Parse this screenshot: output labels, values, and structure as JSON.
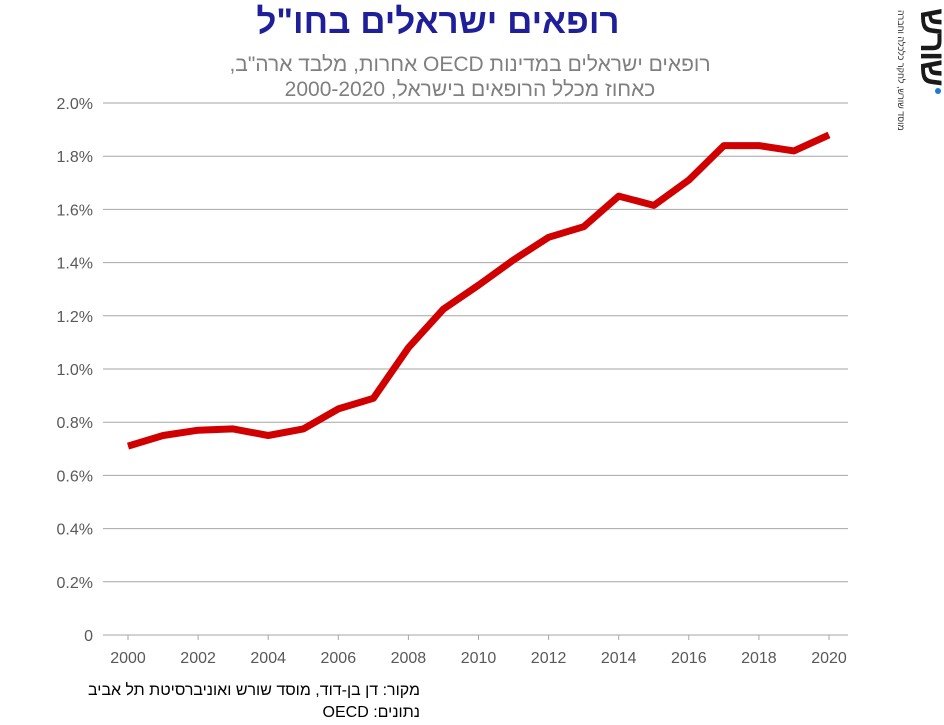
{
  "header": {
    "title": "רופאים ישראלים בחו\"ל",
    "subtitle_line1": "רופאים ישראלים במדינות OECD אחרות, מלבד ארה\"ב,",
    "subtitle_line2": "כאחוז מכלל הרופאים בישראל, 2000-2020"
  },
  "logo": {
    "word": "שורש",
    "tagline": "מוסד שורש, לחקר כלכלה וחברה",
    "dot_color": "#1f7ad1"
  },
  "footer": {
    "source": "מקור:  דן בן-דוד, מוסד שורש ואוניברסיטת תל אביב",
    "data": "נתונים: OECD"
  },
  "colors": {
    "line": "#d10000",
    "grid": "#a6a6a6",
    "title": "#1f1f9a",
    "subtitle": "#7f7f7f"
  },
  "chart_data": {
    "type": "line",
    "title": "רופאים ישראלים בחו\"ל",
    "xlabel": "",
    "ylabel": "",
    "x": [
      2000,
      2001,
      2002,
      2003,
      2004,
      2005,
      2006,
      2007,
      2008,
      2009,
      2010,
      2011,
      2012,
      2013,
      2014,
      2015,
      2016,
      2017,
      2018,
      2019,
      2020
    ],
    "series": [
      {
        "name": "רופאים ישראלים במדינות OECD אחרות",
        "values": [
          0.71,
          0.75,
          0.77,
          0.775,
          0.75,
          0.775,
          0.85,
          0.89,
          1.08,
          1.225,
          1.315,
          1.41,
          1.495,
          1.535,
          1.65,
          1.615,
          1.71,
          1.84,
          1.84,
          1.82,
          1.88
        ]
      }
    ],
    "xticks": [
      "2000",
      "2002",
      "2004",
      "2006",
      "2008",
      "2010",
      "2012",
      "2014",
      "2016",
      "2018",
      "2020"
    ],
    "yticks": [
      "0",
      "0.2%",
      "0.4%",
      "0.6%",
      "0.8%",
      "1.0%",
      "1.2%",
      "1.4%",
      "1.6%",
      "1.8%",
      "2.0%"
    ],
    "ylim": [
      0,
      2.0
    ],
    "xlim": [
      2000,
      2020
    ],
    "grid": true,
    "legend": "none"
  }
}
